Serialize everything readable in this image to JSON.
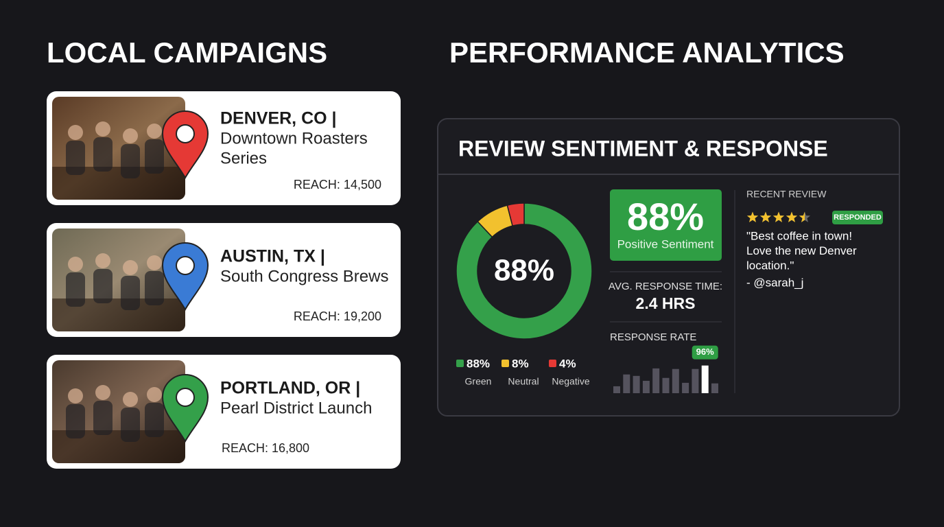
{
  "titles": {
    "campaigns": "LOCAL CAMPAIGNS",
    "analytics": "PERFORMANCE ANALYTICS"
  },
  "campaigns": [
    {
      "city": "DENVER, CO |",
      "name_lines": [
        "Downtown Roasters",
        "Series"
      ],
      "reach": "REACH: 14,500",
      "pin_color": "#e53935"
    },
    {
      "city": "AUSTIN, TX |",
      "name_lines": [
        "South Congress Brews"
      ],
      "reach": "REACH: 19,200",
      "pin_color": "#3a7bd5"
    },
    {
      "city": "PORTLAND, OR |",
      "name_lines": [
        "Pearl District Launch"
      ],
      "reach": "REACH: 16,800",
      "pin_color": "#34a04a"
    }
  ],
  "panel": {
    "title": "REVIEW SENTIMENT & RESPONSE",
    "sentiment": {
      "type": "pie",
      "center_label": "88%",
      "categories": [
        "Green",
        "Neutral",
        "Negative"
      ],
      "values": [
        88,
        8,
        4
      ],
      "value_labels": [
        "88%",
        "8%",
        "4%"
      ],
      "colors": [
        "#34a04a",
        "#f2c12e",
        "#e53935"
      ]
    },
    "positive": {
      "value_label": "88%",
      "label": "Positive Sentiment"
    },
    "response_time": {
      "label": "AVG. RESPONSE TIME:",
      "value": "2.4 HRS"
    },
    "response_rate": {
      "type": "bar",
      "label": "RESPONSE RATE",
      "values": [
        24,
        65,
        60,
        43,
        86,
        53,
        84,
        36,
        84,
        96,
        34
      ],
      "value_labels": [
        null,
        null,
        null,
        null,
        null,
        null,
        null,
        null,
        null,
        "96%",
        null
      ],
      "color": "#55535e",
      "highlight_color": "#ffffff"
    },
    "review": {
      "heading": "RECENT REVIEW",
      "rating": 4.5,
      "badge": "RESPONDED",
      "lines": [
        "\"Best coffee in town!",
        "Love the new Denver",
        "location.\""
      ],
      "author": "- @sarah_j"
    }
  }
}
